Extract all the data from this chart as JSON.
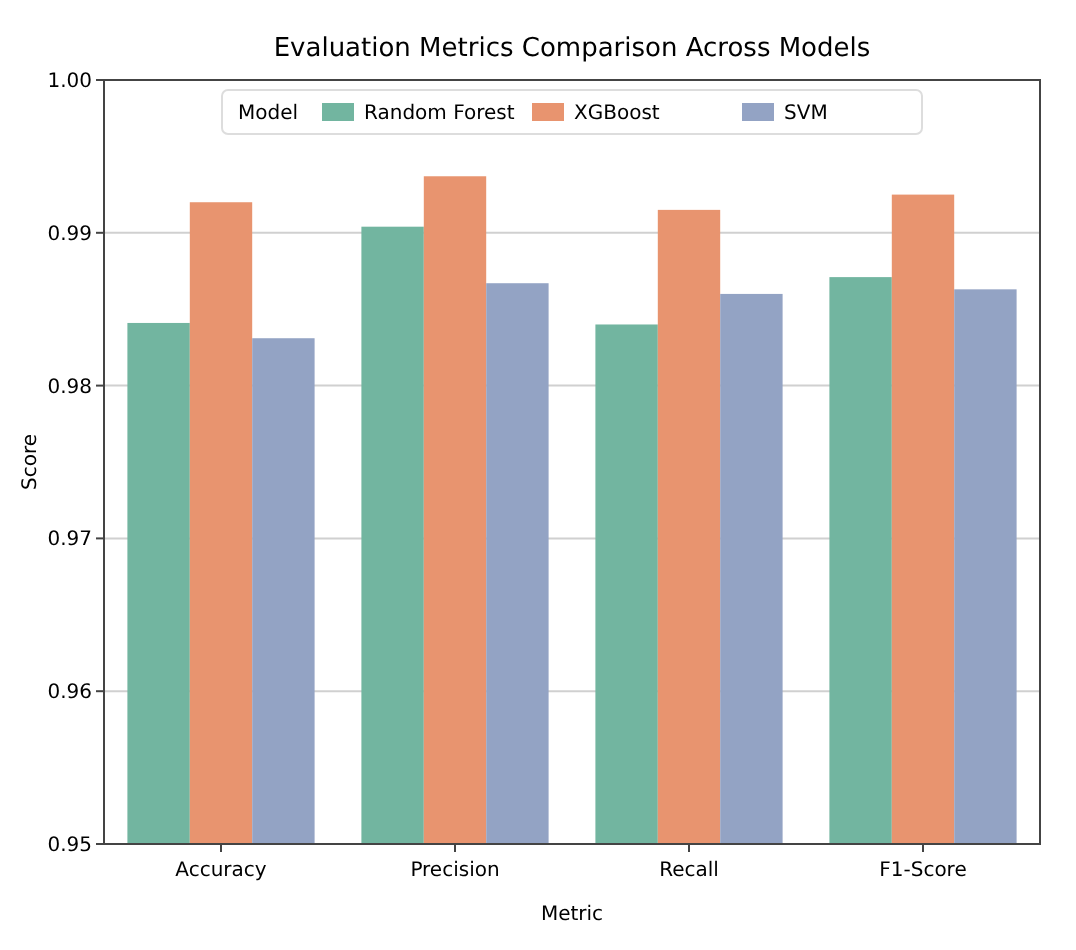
{
  "chart_data": {
    "type": "bar",
    "title": "Evaluation Metrics Comparison Across Models",
    "xlabel": "Metric",
    "ylabel": "Score",
    "legend_title": "Model",
    "categories": [
      "Accuracy",
      "Precision",
      "Recall",
      "F1-Score"
    ],
    "series": [
      {
        "name": "Random Forest",
        "color": "#72b5a0",
        "values": [
          0.9841,
          0.9904,
          0.984,
          0.9871
        ]
      },
      {
        "name": "XGBoost",
        "color": "#e8946f",
        "values": [
          0.992,
          0.9937,
          0.9915,
          0.9925
        ]
      },
      {
        "name": "SVM",
        "color": "#93a3c4",
        "values": [
          0.9831,
          0.9867,
          0.986,
          0.9863
        ]
      }
    ],
    "ylim": [
      0.95,
      1.0
    ],
    "yticks": [
      {
        "value": 0.95,
        "label": "0.95"
      },
      {
        "value": 0.96,
        "label": "0.96"
      },
      {
        "value": 0.97,
        "label": "0.97"
      },
      {
        "value": 0.98,
        "label": "0.98"
      },
      {
        "value": 0.99,
        "label": "0.99"
      },
      {
        "value": 1.0,
        "label": "1.00"
      }
    ],
    "grid": "y",
    "legend": "top"
  }
}
